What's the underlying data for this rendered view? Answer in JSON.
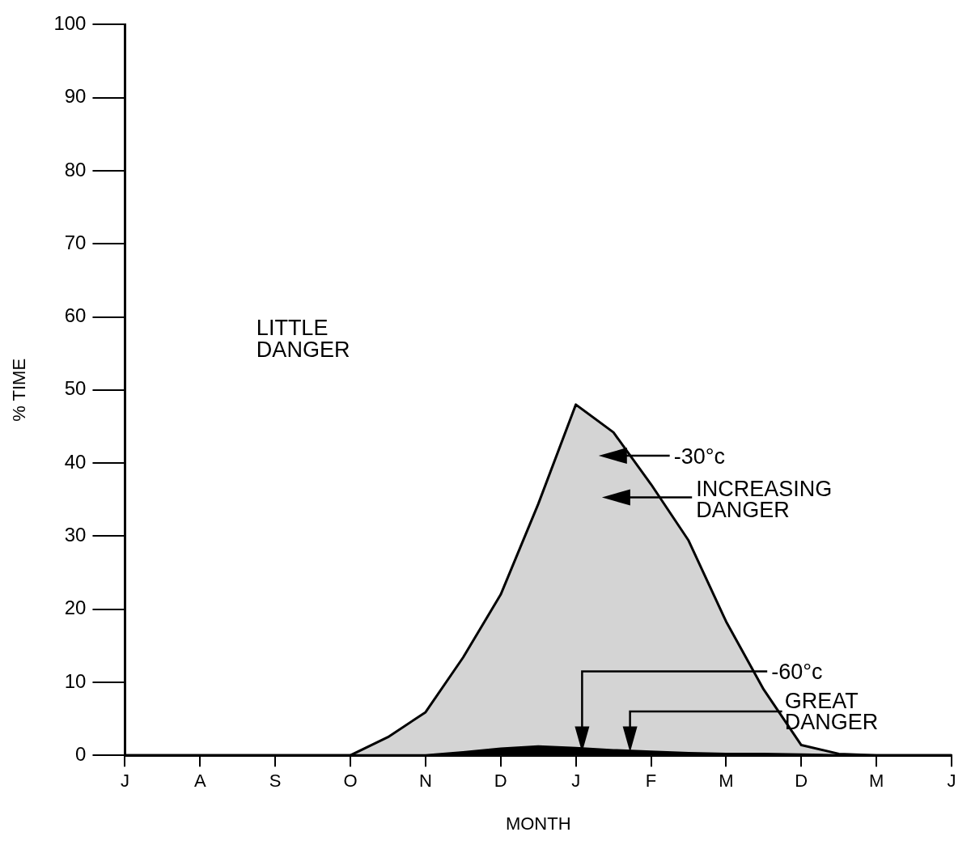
{
  "chart_data": {
    "type": "area",
    "xlabel": "MONTH",
    "ylabel": "% TIME",
    "categories": [
      "J",
      null,
      "A",
      null,
      "S",
      null,
      "O",
      null,
      "N",
      null,
      "D",
      null,
      "J",
      null,
      "F",
      null,
      "M",
      null,
      "D",
      null,
      "M",
      null,
      "J"
    ],
    "ylim": [
      0,
      100
    ],
    "yticks": [
      0,
      10,
      20,
      30,
      40,
      50,
      60,
      70,
      80,
      90,
      100
    ],
    "grid": false,
    "legend": false,
    "series": [
      {
        "color": "#d4d4d4",
        "values": [
          0,
          0,
          0,
          0,
          0,
          0,
          0,
          2.5,
          5.9,
          13.4,
          22.0,
          34.4,
          48,
          44.2,
          37.1,
          29.4,
          18.3,
          9.0,
          1.4,
          0.2,
          0,
          0,
          0
        ]
      },
      {
        "color": "#000000",
        "values": [
          0,
          0,
          0,
          0,
          0,
          0,
          0,
          0,
          0,
          0.4,
          0.9,
          1.2,
          1.0,
          0.7,
          0.5,
          0.3,
          0.2,
          0.2,
          0.1,
          0,
          0,
          0,
          0
        ]
      }
    ],
    "annotations": [
      "LITTLE DANGER",
      "-30°c",
      "INCREASING DANGER",
      "-60°c",
      "GREAT DANGER"
    ]
  }
}
